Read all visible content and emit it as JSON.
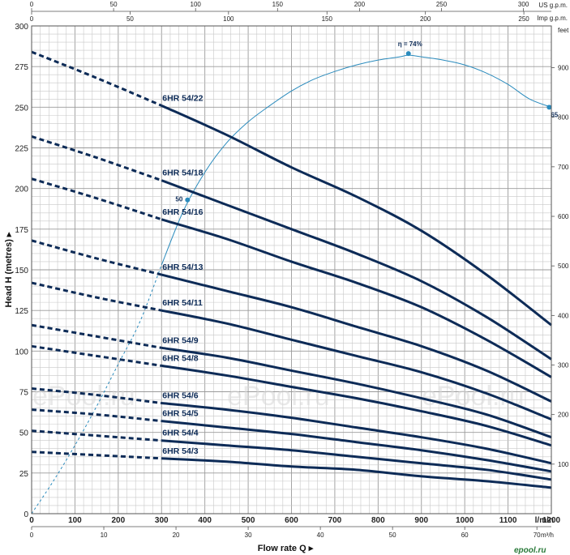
{
  "chart_data": {
    "type": "line",
    "title": "",
    "xlabel": "Flow rate Q",
    "ylabel": "Head H (metres)",
    "x_unit_lmin": "l/min",
    "x_unit_m3h": "m³/h",
    "y_unit_feet": "feet",
    "x_unit_usgpm": "US g.p.m.",
    "x_unit_impgpm": "Imp g.p.m.",
    "x_range_lmin": [
      0,
      1200
    ],
    "y_range_m": [
      0,
      300
    ],
    "grid": true,
    "x_ticks_lmin": [
      "0",
      "100",
      "200",
      "300",
      "400",
      "500",
      "600",
      "700",
      "800",
      "900",
      "1000",
      "1100",
      "1200"
    ],
    "y_ticks_m": [
      "0",
      "25",
      "50",
      "75",
      "100",
      "125",
      "150",
      "175",
      "200",
      "225",
      "250",
      "275",
      "300"
    ],
    "feet_ticks": [
      "100",
      "200",
      "300",
      "400",
      "500",
      "600",
      "700",
      "800",
      "900"
    ],
    "m3h_ticks": [
      "0",
      "10",
      "20",
      "30",
      "40",
      "50",
      "60",
      "70"
    ],
    "usgpm_ticks": [
      "0",
      "50",
      "100",
      "150",
      "200",
      "250",
      "300"
    ],
    "impgpm_ticks": [
      "0",
      "50",
      "100",
      "150",
      "200",
      "250"
    ],
    "series": [
      {
        "name": "6HR 54/22",
        "x": [
          0,
          150,
          300,
          450,
          600,
          750,
          900,
          1050,
          1200
        ],
        "y": [
          284,
          268,
          251,
          233,
          213,
          195,
          174,
          147,
          116
        ],
        "recommended_from": 300
      },
      {
        "name": "6HR 54/18",
        "x": [
          0,
          150,
          300,
          450,
          600,
          750,
          900,
          1050,
          1200
        ],
        "y": [
          232,
          219,
          205,
          190,
          175,
          160,
          143,
          121,
          95
        ],
        "recommended_from": 300
      },
      {
        "name": "6HR 54/16",
        "x": [
          0,
          150,
          300,
          450,
          600,
          750,
          900,
          1050,
          1200
        ],
        "y": [
          206,
          194,
          181,
          169,
          155,
          142,
          127,
          107,
          84
        ],
        "recommended_from": 300
      },
      {
        "name": "6HR 54/13",
        "x": [
          0,
          150,
          300,
          450,
          600,
          750,
          900,
          1050,
          1200
        ],
        "y": [
          168,
          157,
          147,
          137,
          127,
          115,
          103,
          88,
          69
        ],
        "recommended_from": 300
      },
      {
        "name": "6HR 54/11",
        "x": [
          0,
          150,
          300,
          450,
          600,
          750,
          900,
          1050,
          1200
        ],
        "y": [
          142,
          133,
          125,
          117,
          107,
          97,
          87,
          74,
          58
        ],
        "recommended_from": 300
      },
      {
        "name": "6HR 54/9",
        "x": [
          0,
          150,
          300,
          450,
          600,
          750,
          900,
          1050,
          1200
        ],
        "y": [
          116,
          109,
          102,
          96,
          88,
          80,
          71,
          61,
          47
        ],
        "recommended_from": 300
      },
      {
        "name": "6HR 54/8",
        "x": [
          0,
          150,
          300,
          450,
          600,
          750,
          900,
          1050,
          1200
        ],
        "y": [
          103,
          97,
          91,
          85,
          78,
          71,
          63,
          54,
          42
        ],
        "recommended_from": 300
      },
      {
        "name": "6HR 54/6",
        "x": [
          0,
          150,
          300,
          450,
          600,
          750,
          900,
          1050,
          1200
        ],
        "y": [
          77,
          73,
          68,
          64,
          59,
          53,
          47,
          40,
          31
        ],
        "recommended_from": 300
      },
      {
        "name": "6HR 54/5",
        "x": [
          0,
          150,
          300,
          450,
          600,
          750,
          900,
          1050,
          1200
        ],
        "y": [
          64,
          61,
          57,
          53,
          49,
          44,
          39,
          33,
          26
        ],
        "recommended_from": 300
      },
      {
        "name": "6HR 54/4",
        "x": [
          0,
          150,
          300,
          450,
          600,
          750,
          900,
          1050,
          1200
        ],
        "y": [
          51,
          48,
          45,
          42,
          39,
          35,
          31,
          27,
          21
        ],
        "recommended_from": 300
      },
      {
        "name": "6HR 54/3",
        "x": [
          0,
          150,
          300,
          450,
          600,
          750,
          900,
          1050,
          1200
        ],
        "y": [
          38,
          36,
          34,
          32,
          29,
          27,
          23,
          20,
          16
        ],
        "recommended_from": 300
      }
    ],
    "efficiency_curve": {
      "x": [
        0,
        50,
        100,
        150,
        200,
        250,
        300,
        350,
        400,
        450,
        500,
        550,
        600,
        650,
        700,
        750,
        800,
        850,
        870,
        900,
        950,
        1000,
        1050,
        1100,
        1150,
        1200
      ],
      "y": [
        0,
        20,
        42,
        66,
        92,
        118,
        153,
        186,
        210,
        228,
        241,
        251,
        260,
        267,
        272,
        276,
        279,
        281,
        282,
        281,
        279,
        276,
        271,
        264,
        255,
        250
      ],
      "solid_from": 300,
      "points": [
        {
          "x": 360,
          "y": 193,
          "label": "50"
        },
        {
          "x": 870,
          "y": 283,
          "label": "η = 74%"
        },
        {
          "x": 1195,
          "y": 250,
          "label": "65"
        }
      ]
    },
    "watermark": "ePool.ru",
    "logo": "epool.ru",
    "colors": {
      "curve": "#0d2b57",
      "efficiency": "#2a8bbd",
      "grid": "#c8c8c8"
    }
  }
}
